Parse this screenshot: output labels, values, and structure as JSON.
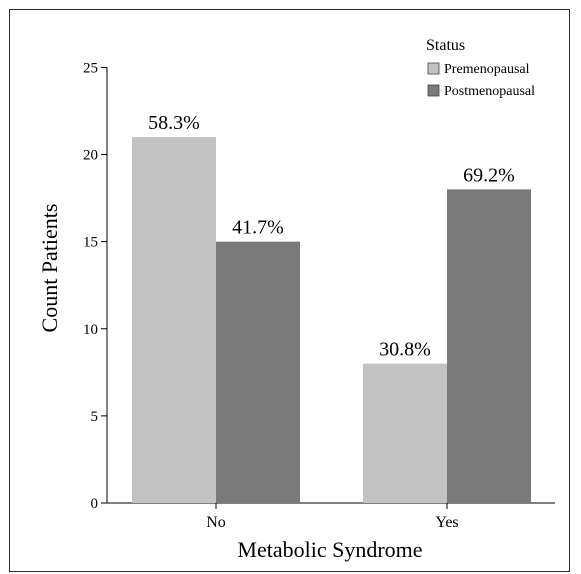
{
  "chart_data": {
    "type": "bar",
    "categories": [
      "No",
      "Yes"
    ],
    "series": [
      {
        "name": "Premenopausal",
        "values": [
          21,
          8
        ],
        "labels": [
          "58.3%",
          "30.8%"
        ],
        "color": "#c2c2c2"
      },
      {
        "name": "Postmenopausal",
        "values": [
          15,
          18
        ],
        "labels": [
          "41.7%",
          "69.2%"
        ],
        "color": "#7a7a7a"
      }
    ],
    "xlabel": "Metabolic Syndrome",
    "ylabel": "Count Patients",
    "ylim": [
      0,
      26
    ],
    "yticks": [
      0,
      5,
      10,
      15,
      20,
      25
    ],
    "legend_title": "Status",
    "legend_position": "top-right",
    "grid": false
  }
}
